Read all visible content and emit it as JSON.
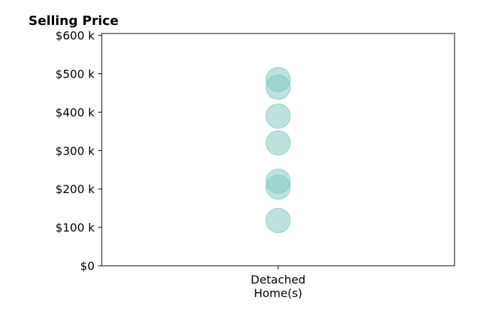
{
  "chart_data": {
    "type": "scatter",
    "title": "Selling Price",
    "xlabel": "",
    "ylabel": "",
    "categories": [
      "Detached\nHome(s)"
    ],
    "series": [
      {
        "category": "Detached\nHome(s)",
        "values": [
          485000,
          465000,
          390000,
          320000,
          220000,
          205000,
          118000
        ]
      }
    ],
    "ylim": [
      0,
      605000
    ],
    "yticks": [
      0,
      100000,
      200000,
      300000,
      400000,
      500000,
      600000
    ],
    "ytick_labels": [
      "$0",
      "$100 k",
      "$200 k",
      "$300 k",
      "$400 k",
      "$500 k",
      "$600 k"
    ],
    "marker_color": "#7ec8c0",
    "grid": false
  }
}
